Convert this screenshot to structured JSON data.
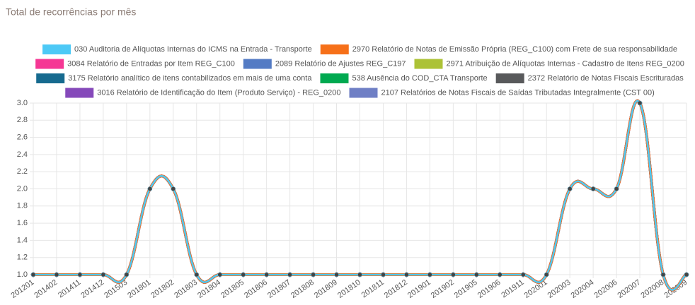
{
  "chart_data": {
    "type": "line",
    "title": "Total de recorrências por mês",
    "categories": [
      "201201",
      "201402",
      "201411",
      "201412",
      "201503",
      "201801",
      "201802",
      "201803",
      "201804",
      "201805",
      "201806",
      "201807",
      "201808",
      "201809",
      "201810",
      "201811",
      "201812",
      "201901",
      "201902",
      "201905",
      "201906",
      "201911",
      "202001",
      "202003",
      "202004",
      "202006",
      "202007",
      "202008",
      "202009"
    ],
    "series": [
      {
        "name": "030 Auditoria de Alíquotas Internas do ICMS na Entrada - Transporte",
        "color": "#4dc9f6",
        "values": [
          1,
          1,
          1,
          1,
          1,
          2,
          2,
          1,
          1,
          1,
          1,
          1,
          1,
          1,
          1,
          1,
          1,
          1,
          1,
          1,
          1,
          1,
          1,
          2,
          2,
          2,
          3,
          1,
          1
        ]
      },
      {
        "name": "2970 Relatório de Notas de Emissão Própria (REG_C100) com Frete de sua responsabilidade",
        "color": "#f67019",
        "values": [
          1,
          1,
          1,
          1,
          1,
          2,
          2,
          1,
          1,
          1,
          1,
          1,
          1,
          1,
          1,
          1,
          1,
          1,
          1,
          1,
          1,
          1,
          1,
          2,
          2,
          2,
          3,
          1,
          1
        ]
      },
      {
        "name": "3084 Relatório de Entradas por Item REG_C100",
        "color": "#f53794",
        "values": [
          1,
          1,
          1,
          1,
          1,
          2,
          2,
          1,
          1,
          1,
          1,
          1,
          1,
          1,
          1,
          1,
          1,
          1,
          1,
          1,
          1,
          1,
          1,
          2,
          2,
          2,
          3,
          1,
          1
        ]
      },
      {
        "name": "2089 Relatório de Ajustes REG_C197",
        "color": "#537bc4",
        "values": [
          1,
          1,
          1,
          1,
          1,
          2,
          2,
          1,
          1,
          1,
          1,
          1,
          1,
          1,
          1,
          1,
          1,
          1,
          1,
          1,
          1,
          1,
          1,
          2,
          2,
          2,
          3,
          1,
          1
        ]
      },
      {
        "name": "2971 Atribuição de Alíquotas Internas - Cadastro de Itens REG_0200",
        "color": "#acc236",
        "values": [
          1,
          1,
          1,
          1,
          1,
          2,
          2,
          1,
          1,
          1,
          1,
          1,
          1,
          1,
          1,
          1,
          1,
          1,
          1,
          1,
          1,
          1,
          1,
          2,
          2,
          2,
          3,
          1,
          1
        ]
      },
      {
        "name": "3175 Relatório analítico de itens contabilizados em mais de uma conta",
        "color": "#166a8f",
        "values": [
          1,
          1,
          1,
          1,
          1,
          2,
          2,
          1,
          1,
          1,
          1,
          1,
          1,
          1,
          1,
          1,
          1,
          1,
          1,
          1,
          1,
          1,
          1,
          2,
          2,
          2,
          3,
          1,
          1
        ]
      },
      {
        "name": "538 Ausência do COD_CTA Transporte",
        "color": "#00a950",
        "values": [
          1,
          1,
          1,
          1,
          1,
          2,
          2,
          1,
          1,
          1,
          1,
          1,
          1,
          1,
          1,
          1,
          1,
          1,
          1,
          1,
          1,
          1,
          1,
          2,
          2,
          2,
          3,
          1,
          1
        ]
      },
      {
        "name": "2372 Relatório de Notas Fiscais Escrituradas",
        "color": "#58595b",
        "values": [
          1,
          1,
          1,
          1,
          1,
          2,
          2,
          1,
          1,
          1,
          1,
          1,
          1,
          1,
          1,
          1,
          1,
          1,
          1,
          1,
          1,
          1,
          1,
          2,
          2,
          2,
          3,
          1,
          1
        ]
      },
      {
        "name": "3016 Relatório de Identificação do Item (Produto Serviço) - REG_0200",
        "color": "#8549ba",
        "values": [
          1,
          1,
          1,
          1,
          1,
          2,
          2,
          1,
          1,
          1,
          1,
          1,
          1,
          1,
          1,
          1,
          1,
          1,
          1,
          1,
          1,
          1,
          1,
          2,
          2,
          2,
          3,
          1,
          1
        ]
      },
      {
        "name": "2107 Relatórios de Notas Fiscais de Saídas Tributadas Integralmente (CST 00)",
        "color": "#6f7fc5",
        "values": [
          1,
          1,
          1,
          1,
          1,
          2,
          2,
          1,
          1,
          1,
          1,
          1,
          1,
          1,
          1,
          1,
          1,
          1,
          1,
          1,
          1,
          1,
          1,
          2,
          2,
          2,
          3,
          1,
          1
        ]
      }
    ],
    "ylim": [
      1,
      3
    ],
    "yticks": [
      {
        "value": 1,
        "label": "1.0"
      },
      1.2,
      1.4,
      1.6,
      1.8,
      {
        "value": 2,
        "label": "2.0"
      },
      2.2,
      2.4,
      2.6,
      2.8,
      {
        "value": 3,
        "label": "3.0"
      }
    ],
    "grid": true
  }
}
